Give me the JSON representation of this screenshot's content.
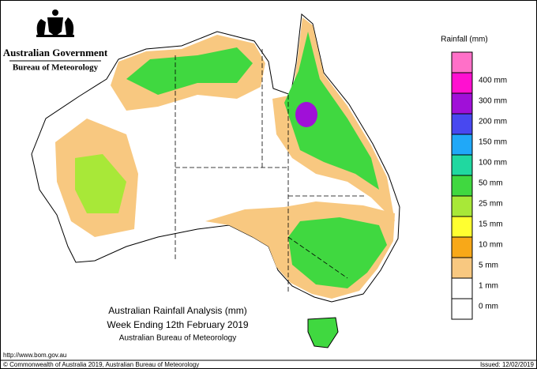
{
  "header": {
    "government": "Australian Government",
    "agency": "Bureau of Meteorology"
  },
  "legend": {
    "title": "Rainfall (mm)",
    "top_color": "#ff70c8",
    "items": [
      {
        "label": "400 mm",
        "color": "#ff10d0"
      },
      {
        "label": "300 mm",
        "color": "#a010d8"
      },
      {
        "label": "200 mm",
        "color": "#4848f0"
      },
      {
        "label": "150 mm",
        "color": "#20a8f8"
      },
      {
        "label": "100 mm",
        "color": "#20d8a0"
      },
      {
        "label": "50 mm",
        "color": "#40d840"
      },
      {
        "label": "25 mm",
        "color": "#a8e838"
      },
      {
        "label": "15 mm",
        "color": "#ffff30"
      },
      {
        "label": "10 mm",
        "color": "#f8a818"
      },
      {
        "label": "5 mm",
        "color": "#f8c880"
      },
      {
        "label": "1 mm",
        "color": "#ffffff"
      },
      {
        "label": "0 mm",
        "color": "#ffffff"
      }
    ]
  },
  "map_title": {
    "line1": "Australian Rainfall Analysis (mm)",
    "line2": "Week Ending 12th February 2019",
    "line3": "Australian Bureau of Meteorology"
  },
  "footer": {
    "url": "http://www.bom.gov.au",
    "copyright": "© Commonwealth of Australia 2019, Australian Bureau of Meteorology",
    "issued": "Issued: 12/02/2019"
  }
}
